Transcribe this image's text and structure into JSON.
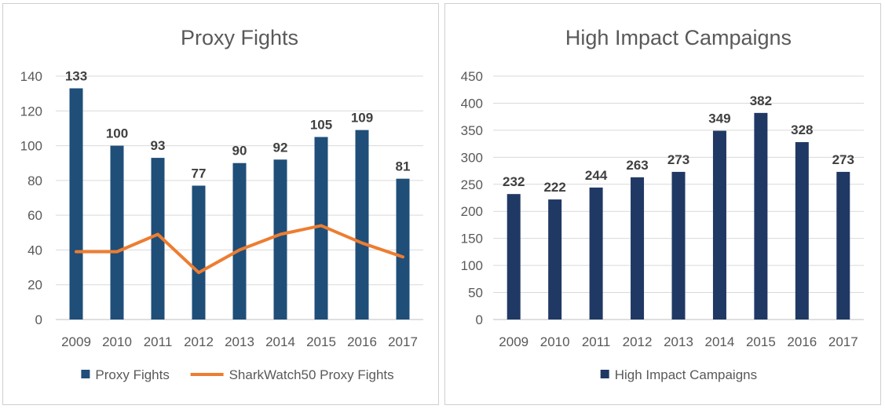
{
  "chart_data": [
    {
      "type": "bar",
      "title": "Proxy Fights",
      "categories": [
        "2009",
        "2010",
        "2011",
        "2012",
        "2013",
        "2014",
        "2015",
        "2016",
        "2017"
      ],
      "ylim": [
        0,
        140
      ],
      "yticks": [
        0,
        20,
        40,
        60,
        80,
        100,
        120,
        140
      ],
      "grid": true,
      "legend_position": "bottom",
      "series": [
        {
          "name": "Proxy Fights",
          "kind": "bar",
          "color": "#1f4e79",
          "values": [
            133,
            100,
            93,
            77,
            90,
            92,
            105,
            109,
            81
          ],
          "data_labels": [
            "133",
            "100",
            "93",
            "77",
            "90",
            "92",
            "105",
            "109",
            "81"
          ]
        },
        {
          "name": "SharkWatch50 Proxy Fights",
          "kind": "line",
          "color": "#ed7d31",
          "values": [
            39,
            39,
            49,
            27,
            40,
            49,
            54,
            44,
            36
          ]
        }
      ]
    },
    {
      "type": "bar",
      "title": "High Impact Campaigns",
      "categories": [
        "2009",
        "2010",
        "2011",
        "2012",
        "2013",
        "2014",
        "2015",
        "2016",
        "2017"
      ],
      "ylim": [
        0,
        450
      ],
      "yticks": [
        0,
        50,
        100,
        150,
        200,
        250,
        300,
        350,
        400,
        450
      ],
      "grid": true,
      "legend_position": "bottom",
      "series": [
        {
          "name": "High Impact Campaigns",
          "kind": "bar",
          "color": "#203864",
          "values": [
            232,
            222,
            244,
            263,
            273,
            349,
            382,
            328,
            273
          ],
          "data_labels": [
            "232",
            "222",
            "244",
            "263",
            "273",
            "349",
            "382",
            "328",
            "273"
          ]
        }
      ]
    }
  ]
}
